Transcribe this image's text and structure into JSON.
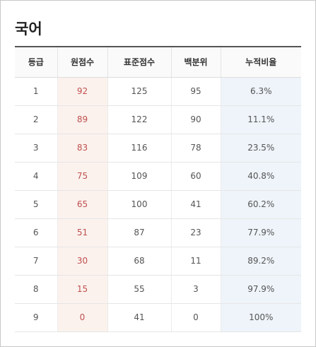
{
  "title": "국어",
  "table": {
    "headers": [
      "등급",
      "원점수",
      "표준점수",
      "백분위",
      "누적비율"
    ],
    "rows": [
      {
        "grade": "1",
        "raw": "92",
        "standard": "125",
        "percentile": "95",
        "cumulative": "6.3%"
      },
      {
        "grade": "2",
        "raw": "89",
        "standard": "122",
        "percentile": "90",
        "cumulative": "11.1%"
      },
      {
        "grade": "3",
        "raw": "83",
        "standard": "116",
        "percentile": "78",
        "cumulative": "23.5%"
      },
      {
        "grade": "4",
        "raw": "75",
        "standard": "109",
        "percentile": "60",
        "cumulative": "40.8%"
      },
      {
        "grade": "5",
        "raw": "65",
        "standard": "100",
        "percentile": "41",
        "cumulative": "60.2%"
      },
      {
        "grade": "6",
        "raw": "51",
        "standard": "87",
        "percentile": "23",
        "cumulative": "77.9%"
      },
      {
        "grade": "7",
        "raw": "30",
        "standard": "68",
        "percentile": "11",
        "cumulative": "89.2%"
      },
      {
        "grade": "8",
        "raw": "15",
        "standard": "55",
        "percentile": "3",
        "cumulative": "97.9%"
      },
      {
        "grade": "9",
        "raw": "0",
        "standard": "41",
        "percentile": "0",
        "cumulative": "100%"
      }
    ]
  },
  "colors": {
    "raw_score_text": "#c0504d",
    "raw_score_bg": "#fbf2ee",
    "cumulative_bg": "#eef4fa"
  }
}
